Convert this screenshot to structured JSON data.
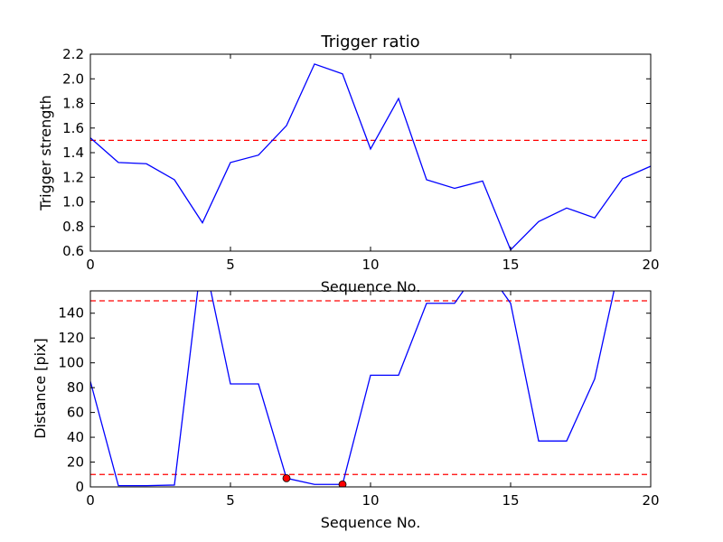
{
  "chart_data": [
    {
      "type": "line",
      "title": "Trigger ratio",
      "xlabel": "Sequence No.",
      "ylabel": "Trigger strength",
      "xlim": [
        0,
        20
      ],
      "ylim": [
        0.6,
        2.2
      ],
      "xticks": [
        0,
        5,
        10,
        15,
        20
      ],
      "yticks": [
        0.6,
        0.8,
        1.0,
        1.2,
        1.4,
        1.6,
        1.8,
        2.0,
        2.2
      ],
      "series": [
        {
          "color": "#0000ff",
          "x": [
            0,
            1,
            2,
            3,
            4,
            5,
            6,
            7,
            8,
            9,
            10,
            11,
            12,
            13,
            14,
            15,
            16,
            17,
            18,
            19,
            20
          ],
          "y": [
            1.52,
            1.32,
            1.31,
            1.18,
            0.83,
            1.32,
            1.38,
            1.62,
            2.12,
            2.04,
            1.43,
            1.84,
            1.18,
            1.11,
            1.17,
            0.61,
            0.84,
            0.95,
            0.87,
            1.19,
            1.29
          ]
        }
      ],
      "hlines": [
        {
          "y": 1.5,
          "color": "#ff0000",
          "style": "dashed"
        }
      ],
      "grid": false
    },
    {
      "type": "line",
      "title": "",
      "xlabel": "Sequence No.",
      "ylabel": "Distance [pix]",
      "xlim": [
        0,
        20
      ],
      "ylim": [
        0,
        158
      ],
      "xticks": [
        0,
        5,
        10,
        15,
        20
      ],
      "yticks": [
        0,
        20,
        40,
        60,
        80,
        100,
        120,
        140
      ],
      "series": [
        {
          "color": "#0000ff",
          "x": [
            0,
            1,
            2,
            3,
            4,
            5,
            6,
            7,
            8,
            9,
            10,
            11,
            12,
            13,
            14,
            15,
            16,
            17,
            18,
            19
          ],
          "y": [
            85,
            1,
            1,
            1.5,
            190,
            83,
            83,
            7,
            2,
            2,
            90,
            90,
            148,
            148,
            180,
            148,
            37,
            37,
            87,
            190
          ]
        }
      ],
      "hlines": [
        {
          "y": 150,
          "color": "#ff0000",
          "style": "dashed"
        },
        {
          "y": 10,
          "color": "#ff0000",
          "style": "dashed"
        }
      ],
      "markers": {
        "color": "#ff0000",
        "x": [
          7,
          9
        ],
        "y": [
          7,
          2
        ]
      },
      "grid": false
    }
  ]
}
